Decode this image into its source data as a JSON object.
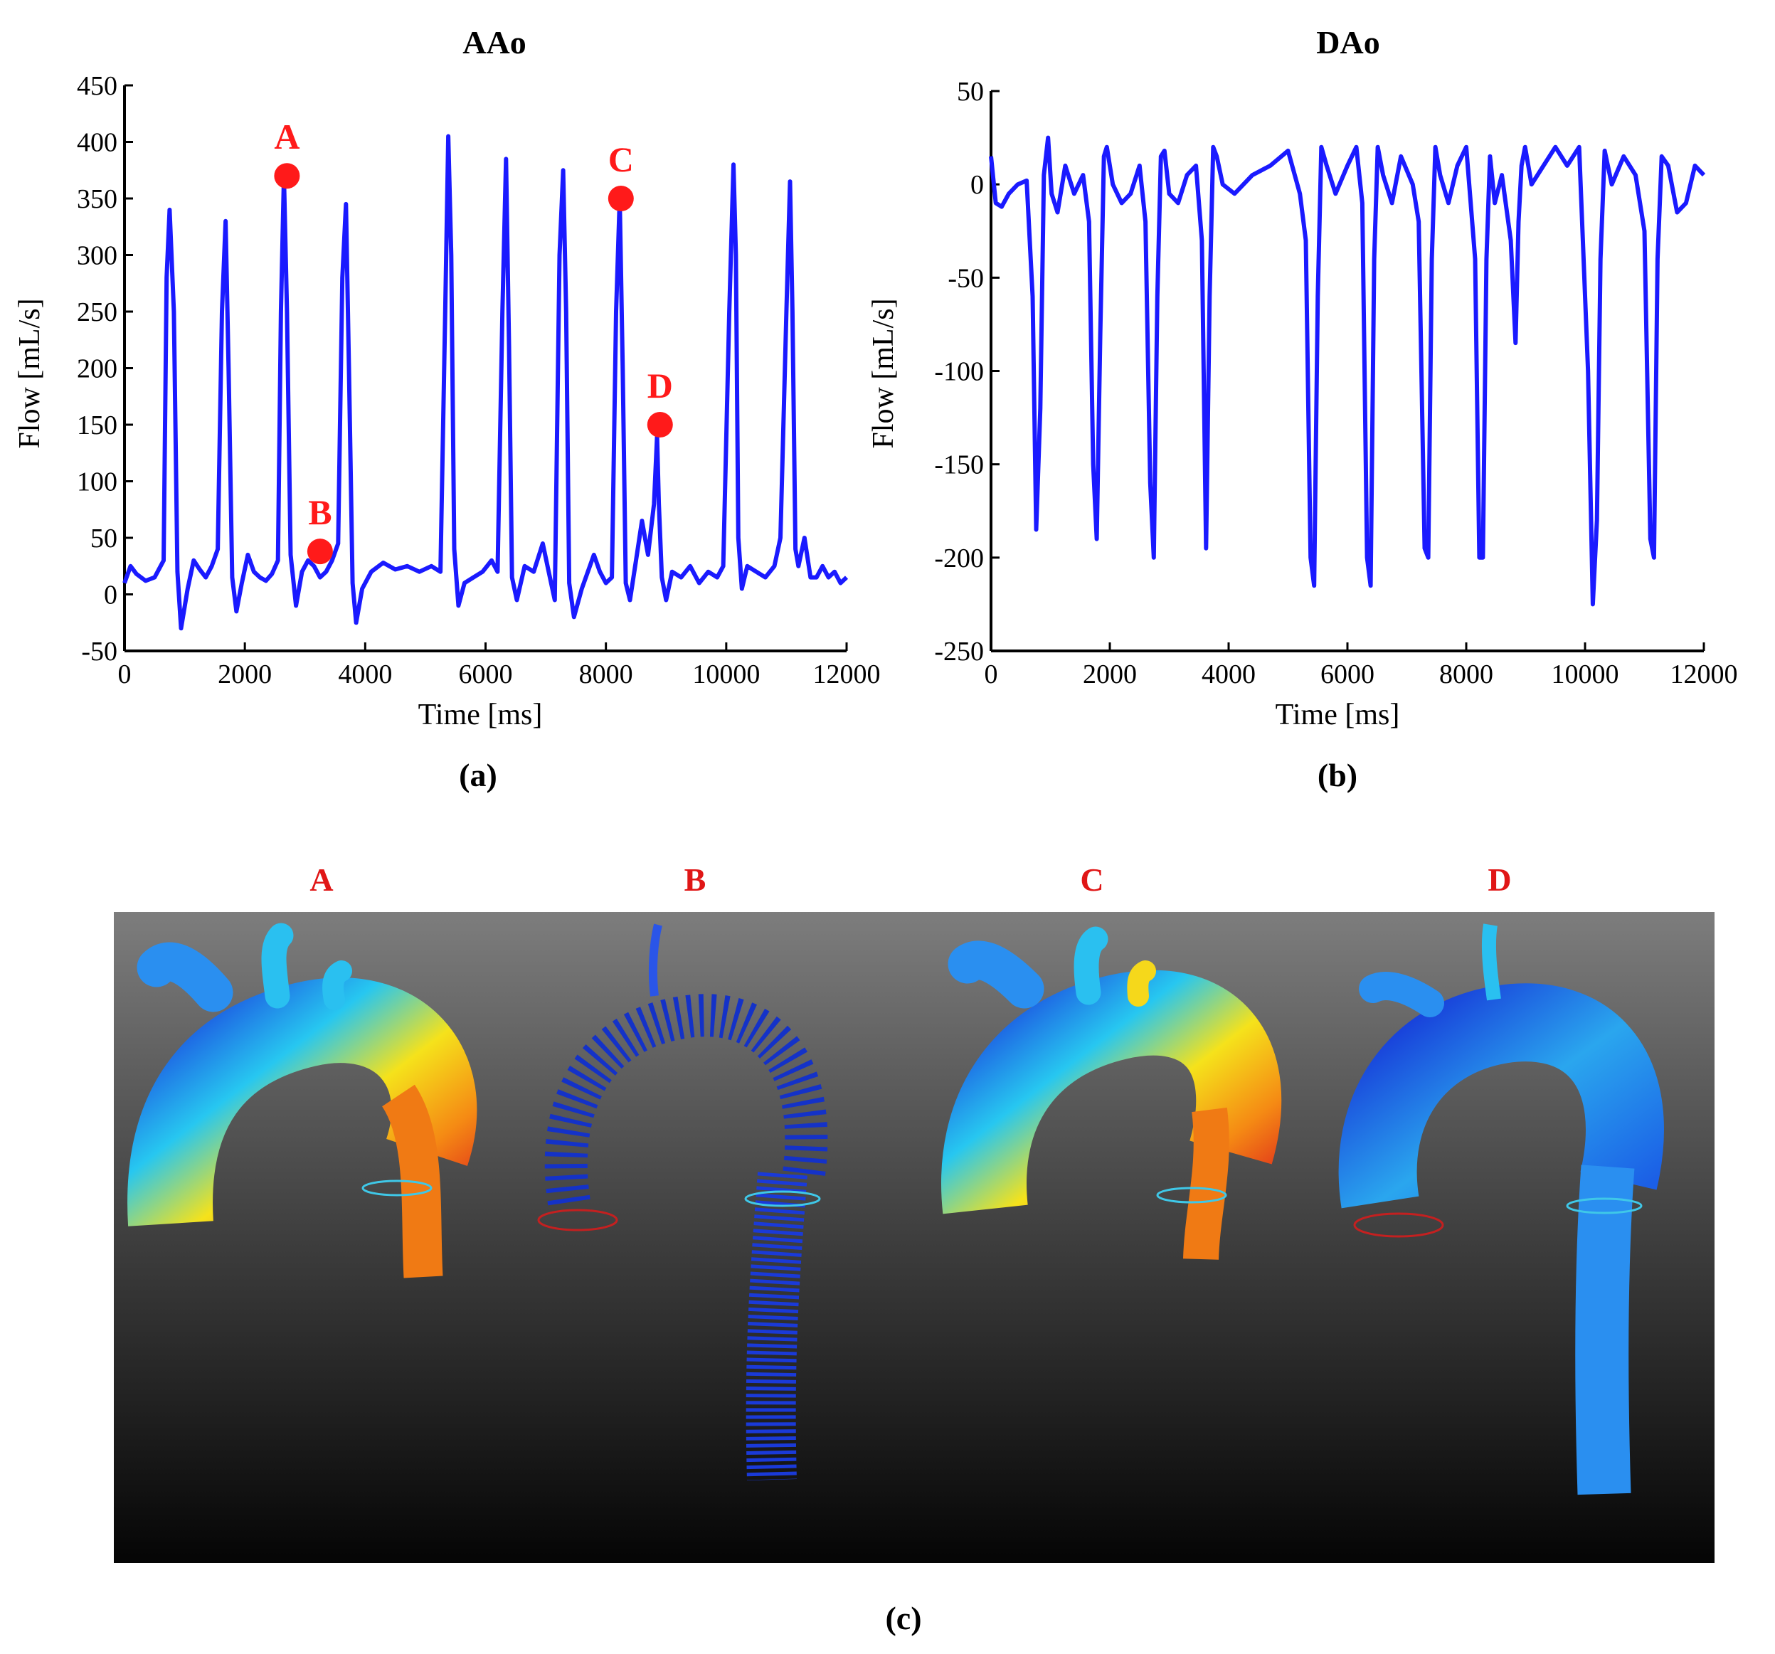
{
  "colors": {
    "series": "#1a1aff",
    "marker": "#ff1a1a",
    "label_red": "#e01616"
  },
  "chart_data": [
    {
      "type": "line",
      "title": "AAo",
      "xlabel": "Time [ms]",
      "ylabel": "Flow [mL/s]",
      "panel_label": "(a)",
      "xlim": [
        0,
        12000
      ],
      "ylim": [
        -50,
        450
      ],
      "xticks": [
        0,
        2000,
        4000,
        6000,
        8000,
        10000,
        12000
      ],
      "yticks": [
        -50,
        0,
        50,
        100,
        150,
        200,
        250,
        300,
        350,
        400,
        450
      ],
      "grid": false,
      "series": [
        {
          "x": [
            0,
            100,
            200,
            350,
            500,
            650,
            700,
            750,
            820,
            880,
            940,
            1050,
            1150,
            1250,
            1350,
            1450,
            1550,
            1620,
            1680,
            1730,
            1790,
            1860,
            1950,
            2050,
            2150,
            2250,
            2350,
            2450,
            2550,
            2600,
            2650,
            2700,
            2760,
            2850,
            2950,
            3050,
            3150,
            3250,
            3350,
            3450,
            3550,
            3620,
            3680,
            3730,
            3790,
            3850,
            3950,
            4100,
            4300,
            4500,
            4700,
            4900,
            5100,
            5250,
            5330,
            5380,
            5430,
            5480,
            5550,
            5650,
            5800,
            5950,
            6100,
            6200,
            6280,
            6340,
            6390,
            6440,
            6520,
            6650,
            6800,
            6950,
            7050,
            7150,
            7230,
            7290,
            7340,
            7390,
            7470,
            7600,
            7700,
            7800,
            7900,
            8000,
            8100,
            8170,
            8230,
            8280,
            8330,
            8400,
            8500,
            8600,
            8700,
            8800,
            8850,
            8880,
            8930,
            9000,
            9100,
            9250,
            9400,
            9550,
            9700,
            9850,
            9950,
            10050,
            10120,
            10160,
            10200,
            10260,
            10350,
            10500,
            10650,
            10800,
            10900,
            11000,
            11060,
            11100,
            11150,
            11200,
            11300,
            11400,
            11500,
            11600,
            11700,
            11800,
            11900,
            12000
          ],
          "y": [
            10,
            25,
            18,
            12,
            15,
            30,
            280,
            340,
            250,
            20,
            -30,
            5,
            30,
            22,
            15,
            25,
            40,
            250,
            330,
            200,
            15,
            -15,
            10,
            35,
            20,
            15,
            12,
            18,
            30,
            250,
            370,
            250,
            35,
            -10,
            20,
            30,
            25,
            15,
            20,
            30,
            45,
            280,
            345,
            200,
            10,
            -25,
            5,
            20,
            28,
            22,
            25,
            20,
            25,
            20,
            250,
            405,
            300,
            40,
            -10,
            10,
            15,
            20,
            30,
            20,
            250,
            385,
            220,
            15,
            -5,
            25,
            20,
            45,
            20,
            -5,
            300,
            375,
            250,
            10,
            -20,
            5,
            20,
            35,
            20,
            10,
            15,
            250,
            350,
            200,
            10,
            -5,
            30,
            65,
            35,
            80,
            140,
            80,
            15,
            -5,
            20,
            15,
            25,
            10,
            20,
            15,
            25,
            250,
            380,
            300,
            50,
            5,
            25,
            20,
            15,
            25,
            50,
            250,
            365,
            250,
            40,
            25,
            50,
            15,
            15,
            25,
            15,
            20,
            10,
            15
          ]
        }
      ],
      "markers": [
        {
          "label": "A",
          "x": 2700,
          "y": 370
        },
        {
          "label": "B",
          "x": 3250,
          "y": 38
        },
        {
          "label": "C",
          "x": 8250,
          "y": 350
        },
        {
          "label": "D",
          "x": 8900,
          "y": 150
        }
      ]
    },
    {
      "type": "line",
      "title": "DAo",
      "xlabel": "Time [ms]",
      "ylabel": "Flow [mL/s]",
      "panel_label": "(b)",
      "xlim": [
        0,
        12000
      ],
      "ylim": [
        -250,
        50
      ],
      "xticks": [
        0,
        2000,
        4000,
        6000,
        8000,
        10000,
        12000
      ],
      "yticks": [
        -250,
        -200,
        -150,
        -100,
        -50,
        0,
        50
      ],
      "grid": false,
      "series": [
        {
          "x": [
            0,
            80,
            180,
            300,
            450,
            600,
            700,
            760,
            830,
            890,
            960,
            1020,
            1120,
            1250,
            1400,
            1550,
            1650,
            1720,
            1780,
            1840,
            1900,
            1950,
            2050,
            2200,
            2350,
            2500,
            2600,
            2680,
            2740,
            2800,
            2860,
            2920,
            3000,
            3150,
            3300,
            3450,
            3550,
            3620,
            3680,
            3740,
            3800,
            3900,
            4100,
            4400,
            4700,
            5000,
            5200,
            5300,
            5380,
            5440,
            5500,
            5560,
            5650,
            5800,
            6000,
            6150,
            6250,
            6330,
            6390,
            6450,
            6510,
            6600,
            6750,
            6900,
            7100,
            7200,
            7300,
            7360,
            7420,
            7480,
            7560,
            7700,
            7850,
            8000,
            8150,
            8220,
            8280,
            8340,
            8400,
            8480,
            8600,
            8750,
            8830,
            8880,
            8930,
            8990,
            9100,
            9300,
            9500,
            9700,
            9900,
            10050,
            10130,
            10200,
            10260,
            10330,
            10450,
            10650,
            10850,
            11000,
            11100,
            11160,
            11220,
            11290,
            11400,
            11550,
            11700,
            11850,
            12000
          ],
          "y": [
            15,
            -10,
            -12,
            -5,
            0,
            2,
            -60,
            -185,
            -120,
            5,
            25,
            -5,
            -15,
            10,
            -5,
            5,
            -20,
            -150,
            -190,
            -80,
            15,
            20,
            0,
            -10,
            -5,
            10,
            -20,
            -160,
            -200,
            -60,
            15,
            18,
            -5,
            -10,
            5,
            10,
            -30,
            -195,
            -60,
            20,
            15,
            0,
            -5,
            5,
            10,
            18,
            -5,
            -30,
            -200,
            -215,
            -60,
            20,
            10,
            -5,
            10,
            20,
            -10,
            -200,
            -215,
            -40,
            20,
            5,
            -10,
            15,
            0,
            -20,
            -195,
            -200,
            -40,
            20,
            5,
            -10,
            10,
            20,
            -40,
            -200,
            -200,
            -40,
            15,
            -10,
            5,
            -30,
            -85,
            -20,
            10,
            20,
            0,
            10,
            20,
            10,
            20,
            -100,
            -225,
            -180,
            -40,
            18,
            0,
            15,
            5,
            -25,
            -190,
            -200,
            -40,
            15,
            10,
            -15,
            -10,
            10,
            5
          ]
        }
      ]
    }
  ],
  "renders": {
    "panel_label": "(c)",
    "items": [
      {
        "label": "A"
      },
      {
        "label": "B"
      },
      {
        "label": "C"
      },
      {
        "label": "D"
      }
    ]
  }
}
